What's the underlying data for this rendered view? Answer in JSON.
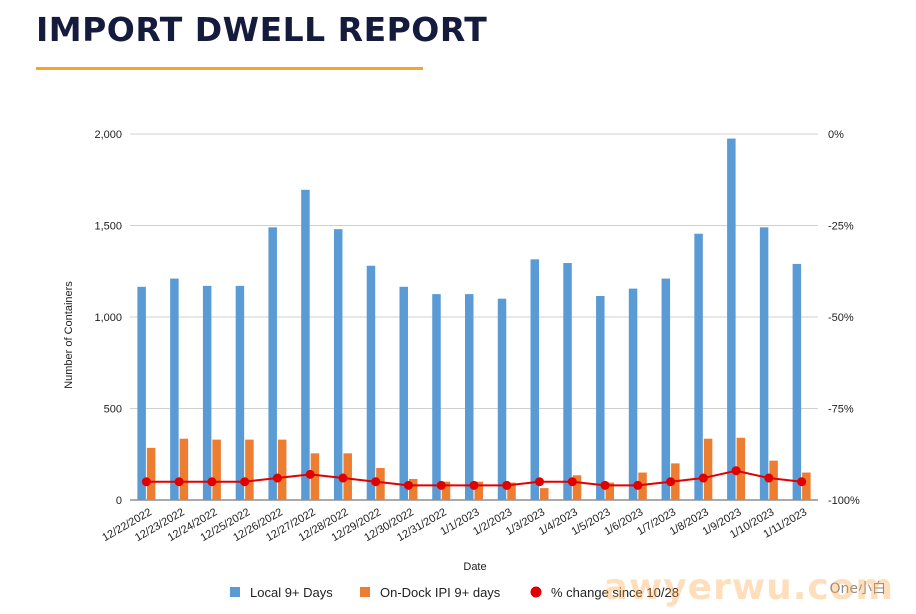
{
  "page": {
    "title": "IMPORT DWELL REPORT",
    "accent_color": "#f5a623",
    "title_color": "#141b3c"
  },
  "watermark": {
    "text": "awyerwu.com",
    "logo_text": "One小白"
  },
  "chart_data": {
    "type": "bar",
    "xlabel": "Date",
    "ylabel": "Number of Containers",
    "ylim": [
      0,
      2000
    ],
    "y_ticks": [
      "0",
      "500",
      "1,000",
      "1,500",
      "2,000"
    ],
    "y2lim": [
      -100,
      0
    ],
    "y2_ticks": [
      "-100%",
      "-75%",
      "-50%",
      "-25%",
      "0%"
    ],
    "grid": true,
    "legend_position": "bottom",
    "categories": [
      "12/22/2022",
      "12/23/2022",
      "12/24/2022",
      "12/25/2022",
      "12/26/2022",
      "12/27/2022",
      "12/28/2022",
      "12/29/2022",
      "12/30/2022",
      "12/31/2022",
      "1/1/2023",
      "1/2/2023",
      "1/3/2023",
      "1/4/2023",
      "1/5/2023",
      "1/6/2023",
      "1/7/2023",
      "1/8/2023",
      "1/9/2023",
      "1/10/2023",
      "1/11/2023"
    ],
    "series": [
      {
        "name": "Local 9+ Days",
        "type": "bar",
        "axis": "left",
        "color": "#5b9bd5",
        "values": [
          1165,
          1210,
          1170,
          1170,
          1490,
          1695,
          1480,
          1280,
          1165,
          1125,
          1125,
          1100,
          1315,
          1295,
          1115,
          1155,
          1210,
          1455,
          1975,
          1490,
          1290
        ]
      },
      {
        "name": "On-Dock IPI 9+ days",
        "type": "bar",
        "axis": "left",
        "color": "#ed7d31",
        "values": [
          285,
          335,
          330,
          330,
          330,
          255,
          255,
          175,
          115,
          100,
          100,
          95,
          65,
          135,
          95,
          150,
          200,
          335,
          340,
          215,
          150
        ]
      },
      {
        "name": "% change since 10/28",
        "type": "line",
        "axis": "right",
        "color": "#e00000",
        "values": [
          -95,
          -95,
          -95,
          -95,
          -94,
          -93,
          -94,
          -95,
          -96,
          -96,
          -96,
          -96,
          -95,
          -95,
          -96,
          -96,
          -95,
          -94,
          -92,
          -94,
          -95
        ]
      }
    ]
  }
}
